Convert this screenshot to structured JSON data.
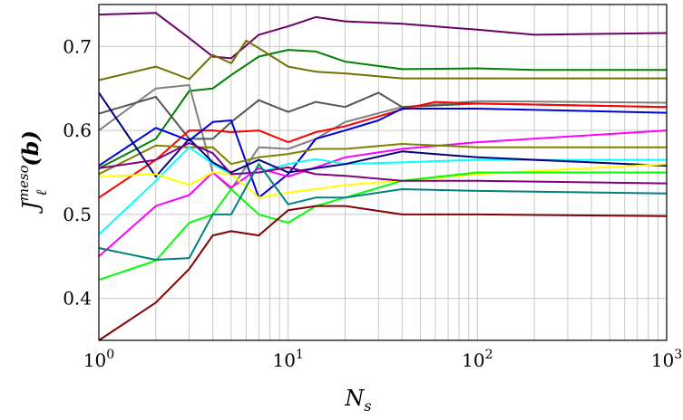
{
  "chart_data": {
    "type": "line",
    "xscale": "log",
    "xlim": [
      1,
      1000
    ],
    "ylim": [
      0.35,
      0.75
    ],
    "grid": true,
    "xlabel": {
      "base": "N",
      "sub": "s"
    },
    "ylabel": {
      "base": "J",
      "sup": "meso",
      "sub": "ℓ",
      "arg": "(b)"
    },
    "xticks": [
      {
        "value": 1,
        "base": "10",
        "exp": "0"
      },
      {
        "value": 10,
        "base": "10",
        "exp": "1"
      },
      {
        "value": 100,
        "base": "10",
        "exp": "2"
      },
      {
        "value": 1000,
        "base": "10",
        "exp": "3"
      }
    ],
    "yticks": [
      {
        "value": 0.4,
        "label": "0.4"
      },
      {
        "value": 0.5,
        "label": "0.5"
      },
      {
        "value": 0.6,
        "label": "0.6"
      },
      {
        "value": 0.7,
        "label": "0.7"
      }
    ],
    "series": [
      {
        "color": "#6a006a",
        "x": [
          1,
          2,
          3,
          4,
          5,
          7,
          10,
          14,
          20,
          40,
          100,
          200,
          1000
        ],
        "y": [
          0.738,
          0.74,
          0.71,
          0.688,
          0.686,
          0.714,
          0.724,
          0.735,
          0.73,
          0.727,
          0.72,
          0.714,
          0.716
        ]
      },
      {
        "color": "#008000",
        "x": [
          1,
          2,
          3,
          4,
          5,
          7,
          10,
          14,
          20,
          40,
          100,
          200,
          1000
        ],
        "y": [
          0.555,
          0.59,
          0.647,
          0.65,
          0.666,
          0.688,
          0.696,
          0.694,
          0.682,
          0.673,
          0.674,
          0.672,
          0.672
        ]
      },
      {
        "color": "#707000",
        "x": [
          1,
          2,
          3,
          4,
          5,
          6,
          7,
          10,
          14,
          20,
          40,
          100,
          1000
        ],
        "y": [
          0.66,
          0.676,
          0.661,
          0.69,
          0.68,
          0.707,
          0.698,
          0.676,
          0.67,
          0.668,
          0.662,
          0.662,
          0.662
        ]
      },
      {
        "color": "#808080",
        "x": [
          1,
          2,
          3,
          4,
          5,
          7,
          10,
          14,
          20,
          40,
          100,
          1000
        ],
        "y": [
          0.6,
          0.65,
          0.654,
          0.55,
          0.53,
          0.58,
          0.578,
          0.59,
          0.61,
          0.628,
          0.635,
          0.633
        ]
      },
      {
        "color": "#555555",
        "x": [
          1,
          2,
          3,
          4,
          5,
          7,
          10,
          14,
          20,
          30,
          40,
          100,
          1000
        ],
        "y": [
          0.62,
          0.64,
          0.59,
          0.59,
          0.61,
          0.636,
          0.622,
          0.634,
          0.628,
          0.645,
          0.628,
          0.632,
          0.628
        ]
      },
      {
        "color": "#ff0000",
        "x": [
          1,
          2,
          3,
          4,
          5,
          7,
          10,
          14,
          20,
          40,
          60,
          100,
          1000
        ],
        "y": [
          0.52,
          0.565,
          0.6,
          0.6,
          0.598,
          0.6,
          0.586,
          0.598,
          0.605,
          0.625,
          0.634,
          0.632,
          0.628
        ]
      },
      {
        "color": "#0000dd",
        "x": [
          1,
          2,
          3,
          4,
          5,
          7,
          10,
          14,
          20,
          30,
          40,
          100,
          1000
        ],
        "y": [
          0.558,
          0.603,
          0.588,
          0.61,
          0.612,
          0.52,
          0.548,
          0.59,
          0.6,
          0.612,
          0.626,
          0.626,
          0.621
        ]
      },
      {
        "color": "#ff00ff",
        "x": [
          1,
          2,
          3,
          4,
          5,
          7,
          10,
          14,
          20,
          40,
          100,
          1000
        ],
        "y": [
          0.45,
          0.51,
          0.523,
          0.55,
          0.532,
          0.555,
          0.545,
          0.556,
          0.568,
          0.578,
          0.586,
          0.6
        ]
      },
      {
        "color": "#808000",
        "x": [
          1,
          2,
          3,
          4,
          5,
          7,
          10,
          14,
          20,
          40,
          100,
          1000
        ],
        "y": [
          0.548,
          0.582,
          0.58,
          0.58,
          0.56,
          0.568,
          0.572,
          0.578,
          0.578,
          0.584,
          0.58,
          0.58
        ]
      },
      {
        "color": "#00ffff",
        "x": [
          1,
          2,
          3,
          4,
          5,
          7,
          10,
          14,
          20,
          40,
          100,
          1000
        ],
        "y": [
          0.476,
          0.54,
          0.58,
          0.56,
          0.548,
          0.55,
          0.56,
          0.566,
          0.56,
          0.562,
          0.565,
          0.565
        ]
      },
      {
        "color": "#000080",
        "x": [
          1,
          2,
          3,
          4,
          5,
          7,
          10,
          14,
          20,
          40,
          100,
          1000
        ],
        "y": [
          0.645,
          0.545,
          0.59,
          0.562,
          0.55,
          0.565,
          0.55,
          0.555,
          0.56,
          0.575,
          0.568,
          0.558
        ]
      },
      {
        "color": "#ffff00",
        "x": [
          1,
          2,
          3,
          4,
          5,
          7,
          10,
          14,
          20,
          40,
          100,
          1000
        ],
        "y": [
          0.545,
          0.548,
          0.535,
          0.55,
          0.548,
          0.52,
          0.526,
          0.53,
          0.535,
          0.54,
          0.548,
          0.56
        ]
      },
      {
        "color": "#00ff00",
        "x": [
          1,
          2,
          3,
          4,
          5,
          7,
          10,
          14,
          20,
          40,
          100,
          1000
        ],
        "y": [
          0.422,
          0.445,
          0.49,
          0.5,
          0.53,
          0.5,
          0.49,
          0.51,
          0.52,
          0.54,
          0.55,
          0.55
        ]
      },
      {
        "color": "#800080",
        "x": [
          1,
          2,
          3,
          4,
          5,
          7,
          10,
          14,
          20,
          40,
          100,
          1000
        ],
        "y": [
          0.555,
          0.565,
          0.585,
          0.573,
          0.548,
          0.55,
          0.556,
          0.548,
          0.546,
          0.54,
          0.54,
          0.537
        ]
      },
      {
        "color": "#008080",
        "x": [
          1,
          2,
          3,
          4,
          5,
          7,
          10,
          14,
          20,
          40,
          100,
          1000
        ],
        "y": [
          0.46,
          0.446,
          0.448,
          0.5,
          0.5,
          0.56,
          0.512,
          0.52,
          0.52,
          0.53,
          0.528,
          0.525
        ]
      },
      {
        "color": "#800000",
        "x": [
          1,
          2,
          3,
          4,
          5,
          7,
          10,
          14,
          20,
          40,
          100,
          1000
        ],
        "y": [
          0.35,
          0.395,
          0.435,
          0.475,
          0.48,
          0.475,
          0.505,
          0.51,
          0.51,
          0.5,
          0.5,
          0.498
        ]
      }
    ]
  }
}
